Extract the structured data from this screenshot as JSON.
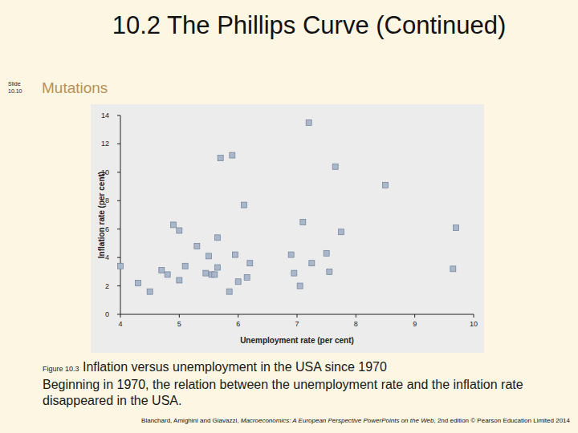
{
  "header": {
    "title": "10.2  The Phillips Curve (Continued)",
    "slide": [
      "Slide",
      "10.10"
    ],
    "subtitle": "Mutations"
  },
  "chart_data": {
    "type": "scatter",
    "x_label": "Unemployment rate (per cent)",
    "y_label": "Inflation rate (per cent)",
    "x": [
      4.0,
      4.3,
      4.5,
      4.7,
      4.8,
      4.9,
      5.0,
      5.0,
      5.1,
      5.3,
      5.45,
      5.5,
      5.55,
      5.6,
      5.65,
      5.65,
      5.7,
      5.85,
      5.9,
      5.95,
      6.0,
      6.1,
      6.15,
      6.2,
      6.9,
      6.95,
      7.05,
      7.1,
      7.2,
      7.25,
      7.5,
      7.55,
      7.65,
      7.75,
      8.5,
      9.65,
      9.7
    ],
    "values": [
      3.4,
      2.2,
      1.6,
      3.1,
      2.8,
      6.3,
      5.9,
      2.4,
      3.4,
      4.8,
      2.9,
      4.1,
      2.8,
      2.8,
      3.3,
      5.4,
      11.0,
      1.6,
      11.2,
      4.2,
      2.3,
      7.7,
      2.6,
      3.6,
      4.2,
      2.9,
      2.0,
      6.5,
      13.5,
      3.6,
      4.3,
      3.0,
      10.4,
      5.8,
      9.1,
      3.2,
      6.1
    ],
    "xlim": [
      4,
      10
    ],
    "xticks": [
      4,
      5,
      6,
      7,
      8,
      9,
      10
    ],
    "ylim": [
      0,
      14
    ],
    "yticks": [
      0,
      2,
      4,
      6,
      8,
      10,
      12,
      14
    ],
    "color": "#a9b7cb",
    "marker": "square",
    "grid": false
  },
  "caption": {
    "figure": "Figure 10.3",
    "title": "Inflation versus unemployment in the USA since 1970",
    "text": "Beginning in 1970, the relation between the unemployment rate and the inflation rate disappeared in the USA."
  },
  "footer": [
    "Blanchard, Amighini and Giavazzi, ",
    "Macroeconomics: A European Perspective PowerPoints on the Web",
    ", 2nd edition © Pearson Education Limited 2014"
  ]
}
